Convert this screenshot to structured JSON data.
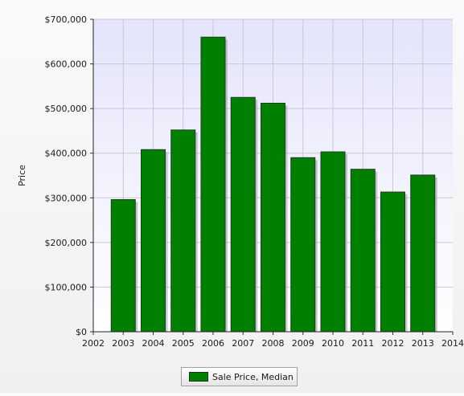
{
  "chart_data": {
    "type": "bar",
    "ylabel": "Price",
    "x_ticks": [
      "2002",
      "2003",
      "2004",
      "2005",
      "2006",
      "2007",
      "2008",
      "2009",
      "2010",
      "2011",
      "2012",
      "2013",
      "2014"
    ],
    "y_ticks": [
      "$0",
      "$100,000",
      "$200,000",
      "$300,000",
      "$400,000",
      "$500,000",
      "$600,000",
      "$700,000"
    ],
    "xlim": [
      2002,
      2014
    ],
    "ylim": [
      0,
      700000
    ],
    "grid": true,
    "legend_position": "bottom-center",
    "series": [
      {
        "name": "Sale Price, Median",
        "color": "#007f00",
        "x": [
          2003,
          2004,
          2005,
          2006,
          2007,
          2008,
          2009,
          2010,
          2011,
          2012,
          2013
        ],
        "values": [
          296000,
          408000,
          452000,
          660000,
          525000,
          512000,
          390000,
          403000,
          364000,
          313000,
          351000
        ]
      }
    ]
  }
}
